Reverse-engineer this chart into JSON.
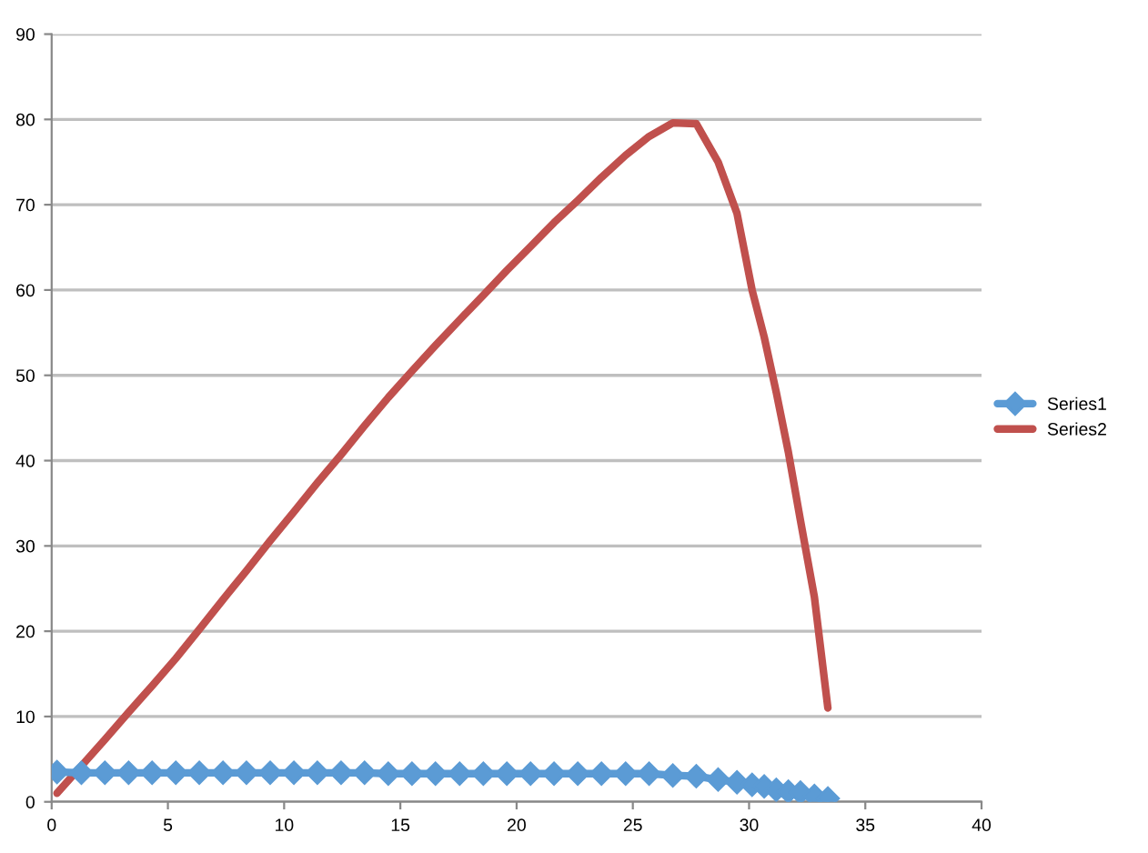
{
  "chart_data": {
    "type": "line",
    "xlim": [
      0,
      40
    ],
    "xticks": [
      0,
      5,
      10,
      15,
      20,
      25,
      30,
      35,
      40
    ],
    "ylim": [
      0,
      90
    ],
    "yticks": [
      0,
      10,
      20,
      30,
      40,
      50,
      60,
      70,
      80,
      90
    ],
    "grid": "y",
    "legend": "right",
    "x": [
      0.23,
      1.28,
      2.29,
      3.31,
      4.32,
      5.34,
      6.35,
      7.37,
      8.38,
      9.4,
      10.42,
      11.43,
      12.45,
      13.46,
      14.48,
      15.5,
      16.51,
      17.55,
      18.57,
      19.58,
      20.6,
      21.61,
      22.63,
      23.65,
      24.69,
      25.7,
      26.72,
      27.73,
      28.67,
      29.48,
      30.13,
      30.65,
      31.17,
      31.69,
      32.21,
      32.81,
      33.39
    ],
    "series": [
      {
        "name": "Series1",
        "color": "#5b9bd5",
        "marker": "diamond",
        "values": [
          3.5,
          3.4,
          3.4,
          3.4,
          3.4,
          3.4,
          3.4,
          3.4,
          3.4,
          3.4,
          3.4,
          3.4,
          3.4,
          3.4,
          3.3,
          3.3,
          3.3,
          3.3,
          3.3,
          3.3,
          3.3,
          3.3,
          3.3,
          3.3,
          3.3,
          3.3,
          3.1,
          3.0,
          2.6,
          2.3,
          2.0,
          1.8,
          1.4,
          1.2,
          1.1,
          0.7,
          0.4
        ]
      },
      {
        "name": "Series2",
        "color": "#c0504d",
        "marker": "none",
        "values": [
          1,
          4.2,
          7.3,
          10.5,
          13.6,
          16.8,
          20.2,
          23.7,
          27.1,
          30.6,
          34,
          37.4,
          40.7,
          44.1,
          47.4,
          50.5,
          53.5,
          56.5,
          59.4,
          62.3,
          65.1,
          67.9,
          70.5,
          73.2,
          75.8,
          78,
          79.6,
          79.5,
          75,
          69,
          60,
          54.5,
          48,
          41,
          33,
          24,
          11
        ]
      }
    ]
  }
}
